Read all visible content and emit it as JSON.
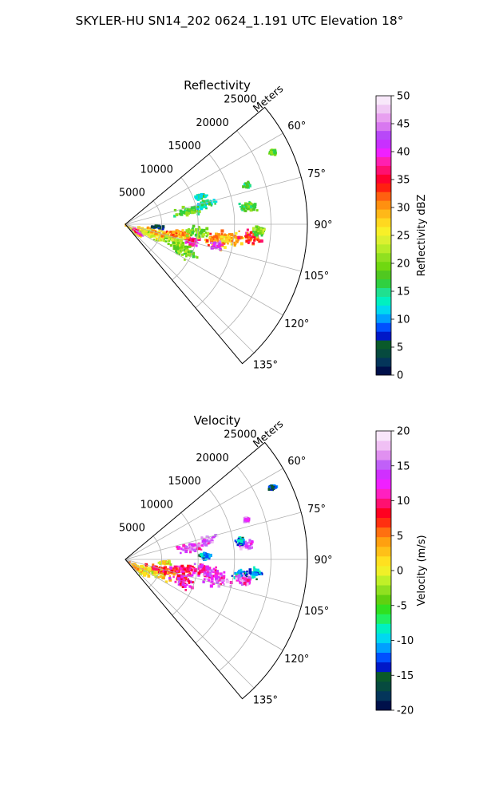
{
  "figure": {
    "title": "SKYLER-HU  SN14_202  0624_1.191 UTC Elevation 18°"
  },
  "chart_data": [
    {
      "type": "heatmap",
      "subtype": "polar-sector",
      "title": "Reflectivity",
      "r_label": "Meters",
      "r_ticks": [
        5000,
        10000,
        15000,
        20000,
        25000
      ],
      "theta_ticks": [
        "60°",
        "75°",
        "90°",
        "105°",
        "120°",
        "135°"
      ],
      "theta_range_deg": [
        50,
        140
      ],
      "r_max": 25000,
      "colorbar": {
        "label": "Reflectivity dBZ",
        "range": [
          0,
          50
        ],
        "ticks": [
          0,
          5,
          10,
          15,
          20,
          25,
          30,
          35,
          40,
          45,
          50
        ],
        "colors": [
          "#00104a",
          "#04355a",
          "#064a3f",
          "#0a5a2a",
          "#0018c8",
          "#0050ff",
          "#00a0ff",
          "#00d8f0",
          "#00f0c0",
          "#20e090",
          "#30d040",
          "#50c820",
          "#70d810",
          "#90e020",
          "#b8ec28",
          "#dcf030",
          "#f8f028",
          "#ffd820",
          "#ffb818",
          "#ff9010",
          "#ff6010",
          "#ff2010",
          "#ff0030",
          "#ff1070",
          "#ff20b0",
          "#f020ff",
          "#c830ff",
          "#b848f8",
          "#d878f0",
          "#e8a0f0",
          "#f0c8f4",
          "#f8e8fa"
        ]
      },
      "blobs": [
        {
          "theta": 128,
          "r": 1500,
          "rw": 1500,
          "tw": 8,
          "dbz": 26
        },
        {
          "theta": 120,
          "r": 2200,
          "rw": 1200,
          "tw": 6,
          "dbz": 38
        },
        {
          "theta": 112,
          "r": 4000,
          "rw": 3000,
          "tw": 10,
          "dbz": 24
        },
        {
          "theta": 105,
          "r": 5000,
          "rw": 3500,
          "tw": 8,
          "dbz": 28
        },
        {
          "theta": 110,
          "r": 7500,
          "rw": 2500,
          "tw": 9,
          "dbz": 22
        },
        {
          "theta": 115,
          "r": 9000,
          "rw": 2500,
          "tw": 7,
          "dbz": 20
        },
        {
          "theta": 104,
          "r": 9500,
          "rw": 1500,
          "tw": 4,
          "dbz": 38
        },
        {
          "theta": 100,
          "r": 7500,
          "rw": 2000,
          "tw": 6,
          "dbz": 30
        },
        {
          "theta": 97,
          "r": 10000,
          "rw": 2500,
          "tw": 7,
          "dbz": 20
        },
        {
          "theta": 100,
          "r": 13000,
          "rw": 2500,
          "tw": 7,
          "dbz": 30
        },
        {
          "theta": 103,
          "r": 13000,
          "rw": 1200,
          "tw": 3,
          "dbz": 42
        },
        {
          "theta": 98,
          "r": 15000,
          "rw": 2500,
          "tw": 5,
          "dbz": 28
        },
        {
          "theta": 96,
          "r": 17500,
          "rw": 2000,
          "tw": 4,
          "dbz": 34
        },
        {
          "theta": 93,
          "r": 18500,
          "rw": 1500,
          "tw": 3,
          "dbz": 20
        },
        {
          "theta": 78,
          "r": 9000,
          "rw": 2500,
          "tw": 5,
          "dbz": 18
        },
        {
          "theta": 76,
          "r": 11500,
          "rw": 2000,
          "tw": 4,
          "dbz": 14
        },
        {
          "theta": 70,
          "r": 11000,
          "rw": 1000,
          "tw": 3,
          "dbz": 14
        },
        {
          "theta": 95,
          "r": 4500,
          "rw": 1200,
          "tw": 3,
          "dbz": 4
        },
        {
          "theta": 82,
          "r": 17000,
          "rw": 1500,
          "tw": 3,
          "dbz": 18
        },
        {
          "theta": 72,
          "r": 17500,
          "rw": 600,
          "tw": 1.5,
          "dbz": 15
        },
        {
          "theta": 64,
          "r": 22500,
          "rw": 700,
          "tw": 1.2,
          "dbz": 18
        }
      ]
    },
    {
      "type": "heatmap",
      "subtype": "polar-sector",
      "title": "Velocity",
      "r_label": "Meters",
      "r_ticks": [
        5000,
        10000,
        15000,
        20000,
        25000
      ],
      "theta_ticks": [
        "60°",
        "75°",
        "90°",
        "105°",
        "120°",
        "135°"
      ],
      "theta_range_deg": [
        50,
        140
      ],
      "r_max": 25000,
      "colorbar": {
        "label": "Velocity (m/s)",
        "range": [
          -20,
          20
        ],
        "ticks": [
          -20,
          -15,
          -10,
          -5,
          0,
          5,
          10,
          15,
          20
        ],
        "colors": [
          "#00104a",
          "#04355a",
          "#064a3f",
          "#0a5a2a",
          "#0018c8",
          "#0050ff",
          "#00a0ff",
          "#00d8f0",
          "#00f0c0",
          "#20f060",
          "#30e020",
          "#60d010",
          "#90e020",
          "#c0f028",
          "#f0f028",
          "#ffe020",
          "#ffc018",
          "#ffa010",
          "#ff7010",
          "#ff3010",
          "#ff0020",
          "#ff1070",
          "#ff20c0",
          "#f020ff",
          "#d030ff",
          "#c060f8",
          "#e090f0",
          "#f0c0f4",
          "#f8e6fa"
        ]
      },
      "blobs": [
        {
          "theta": 125,
          "r": 2500,
          "rw": 2200,
          "tw": 10,
          "v": 2
        },
        {
          "theta": 112,
          "r": 4500,
          "rw": 3000,
          "tw": 9,
          "v": 1
        },
        {
          "theta": 105,
          "r": 5500,
          "rw": 3000,
          "tw": 7,
          "v": 7
        },
        {
          "theta": 100,
          "r": 8000,
          "rw": 2500,
          "tw": 6,
          "v": 10
        },
        {
          "theta": 110,
          "r": 8500,
          "rw": 2500,
          "tw": 8,
          "v": 11
        },
        {
          "theta": 98,
          "r": 11000,
          "rw": 2500,
          "tw": 6,
          "v": 12
        },
        {
          "theta": 102,
          "r": 13000,
          "rw": 2500,
          "tw": 6,
          "v": 14
        },
        {
          "theta": 98,
          "r": 16000,
          "rw": 1500,
          "tw": 4,
          "v": -11
        },
        {
          "theta": 96,
          "r": 18000,
          "rw": 1500,
          "tw": 3,
          "v": -12
        },
        {
          "theta": 100,
          "r": 16500,
          "rw": 1500,
          "tw": 4,
          "v": 14
        },
        {
          "theta": 80,
          "r": 9000,
          "rw": 2500,
          "tw": 5,
          "v": 14
        },
        {
          "theta": 77,
          "r": 11500,
          "rw": 2000,
          "tw": 4,
          "v": 15
        },
        {
          "theta": 88,
          "r": 11000,
          "rw": 1000,
          "tw": 3,
          "v": -12
        },
        {
          "theta": 83,
          "r": 17000,
          "rw": 1500,
          "tw": 3,
          "v": 15
        },
        {
          "theta": 81,
          "r": 16000,
          "rw": 800,
          "tw": 2,
          "v": -11
        },
        {
          "theta": 95,
          "r": 5500,
          "rw": 1000,
          "tw": 3,
          "v": 1
        },
        {
          "theta": 64,
          "r": 22500,
          "rw": 700,
          "tw": 1.2,
          "v": -14
        },
        {
          "theta": 72,
          "r": 17500,
          "rw": 600,
          "tw": 1.5,
          "v": 14
        }
      ]
    }
  ]
}
